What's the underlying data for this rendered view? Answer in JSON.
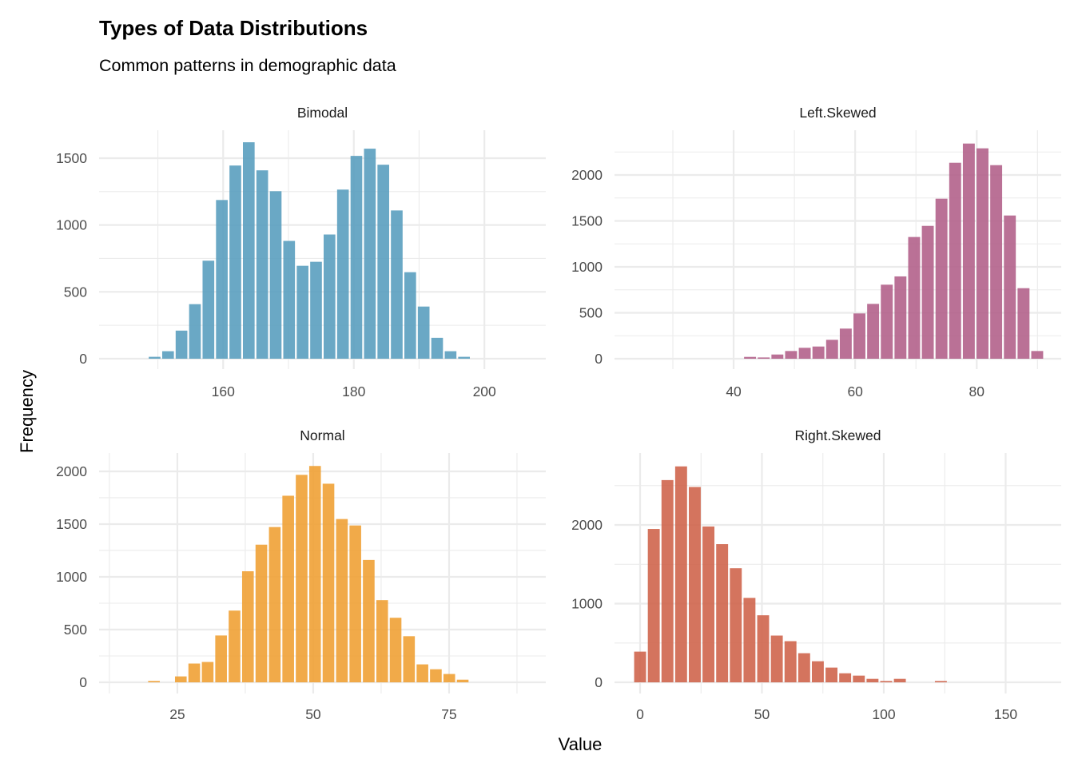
{
  "chart_data": {
    "type": "bar",
    "subtype": "faceted-histogram",
    "title": "Types of Data Distributions",
    "subtitle": "Common patterns in demographic data",
    "xlabel": "Value",
    "ylabel": "Frequency",
    "grid": true,
    "legend": "none",
    "panels": [
      {
        "name": "Bimodal",
        "color": "#5a9fbf",
        "xlim": [
          141,
          209.4
        ],
        "ylim": [
          -78,
          1709
        ],
        "x_ticks": [
          160,
          180,
          200
        ],
        "x_tick_labels": [
          "160",
          "180",
          "200"
        ],
        "y_ticks": [
          0,
          500,
          1000,
          1500
        ],
        "y_tick_labels": [
          "0",
          "500",
          "1000",
          "1500"
        ],
        "bin_width": 2.06,
        "bin_centers_start": 149.5,
        "values": [
          14,
          56,
          210,
          408,
          733,
          1187,
          1445,
          1619,
          1409,
          1253,
          881,
          695,
          725,
          929,
          1265,
          1517,
          1571,
          1451,
          1109,
          647,
          390,
          156,
          56,
          14
        ]
      },
      {
        "name": "Left.Skewed",
        "color": "#b2628b",
        "xlim": [
          20.4,
          93.9
        ],
        "ylim": [
          -113,
          2487
        ],
        "x_ticks": [
          40,
          60,
          80
        ],
        "x_tick_labels": [
          "40",
          "60",
          "80"
        ],
        "y_ticks": [
          0,
          500,
          1000,
          1500,
          2000
        ],
        "y_tick_labels": [
          "0",
          "500",
          "1000",
          "1500",
          "2000"
        ],
        "bin_width": 2.25,
        "bin_centers_start": 42.7,
        "values": [
          20,
          14,
          46,
          84,
          119,
          133,
          206,
          328,
          493,
          597,
          806,
          896,
          1325,
          1446,
          1742,
          2133,
          2342,
          2290,
          2107,
          1559,
          768,
          84
        ]
      },
      {
        "name": "Normal",
        "color": "#f0a135",
        "xlim": [
          10.6,
          92.8
        ],
        "ylim": [
          -106,
          2174
        ],
        "x_ticks": [
          25,
          50,
          75
        ],
        "x_tick_labels": [
          "25",
          "50",
          "75"
        ],
        "y_ticks": [
          0,
          500,
          1000,
          1500,
          2000
        ],
        "y_tick_labels": [
          "0",
          "500",
          "1000",
          "1500",
          "2000"
        ],
        "bin_width": 2.47,
        "bin_centers_start": 20.7,
        "values": [
          13,
          0,
          56,
          178,
          193,
          444,
          680,
          1053,
          1305,
          1472,
          1769,
          1967,
          2051,
          1883,
          1548,
          1487,
          1160,
          779,
          612,
          437,
          170,
          124,
          79,
          25
        ]
      },
      {
        "name": "Right.Skewed",
        "color": "#cf654c",
        "xlim": [
          -10.5,
          172.8
        ],
        "ylim": [
          -142,
          2914
        ],
        "x_ticks": [
          0,
          50,
          100,
          150
        ],
        "x_tick_labels": [
          "0",
          "50",
          "100",
          "150"
        ],
        "y_ticks": [
          0,
          1000,
          2000
        ],
        "y_tick_labels": [
          "0",
          "1000",
          "2000"
        ],
        "bin_width": 5.61,
        "bin_centers_start": 0,
        "values": [
          390,
          1949,
          2570,
          2744,
          2482,
          1980,
          1756,
          1450,
          1073,
          852,
          594,
          523,
          370,
          268,
          187,
          115,
          85,
          44,
          17,
          44,
          0,
          0,
          17
        ]
      }
    ]
  }
}
